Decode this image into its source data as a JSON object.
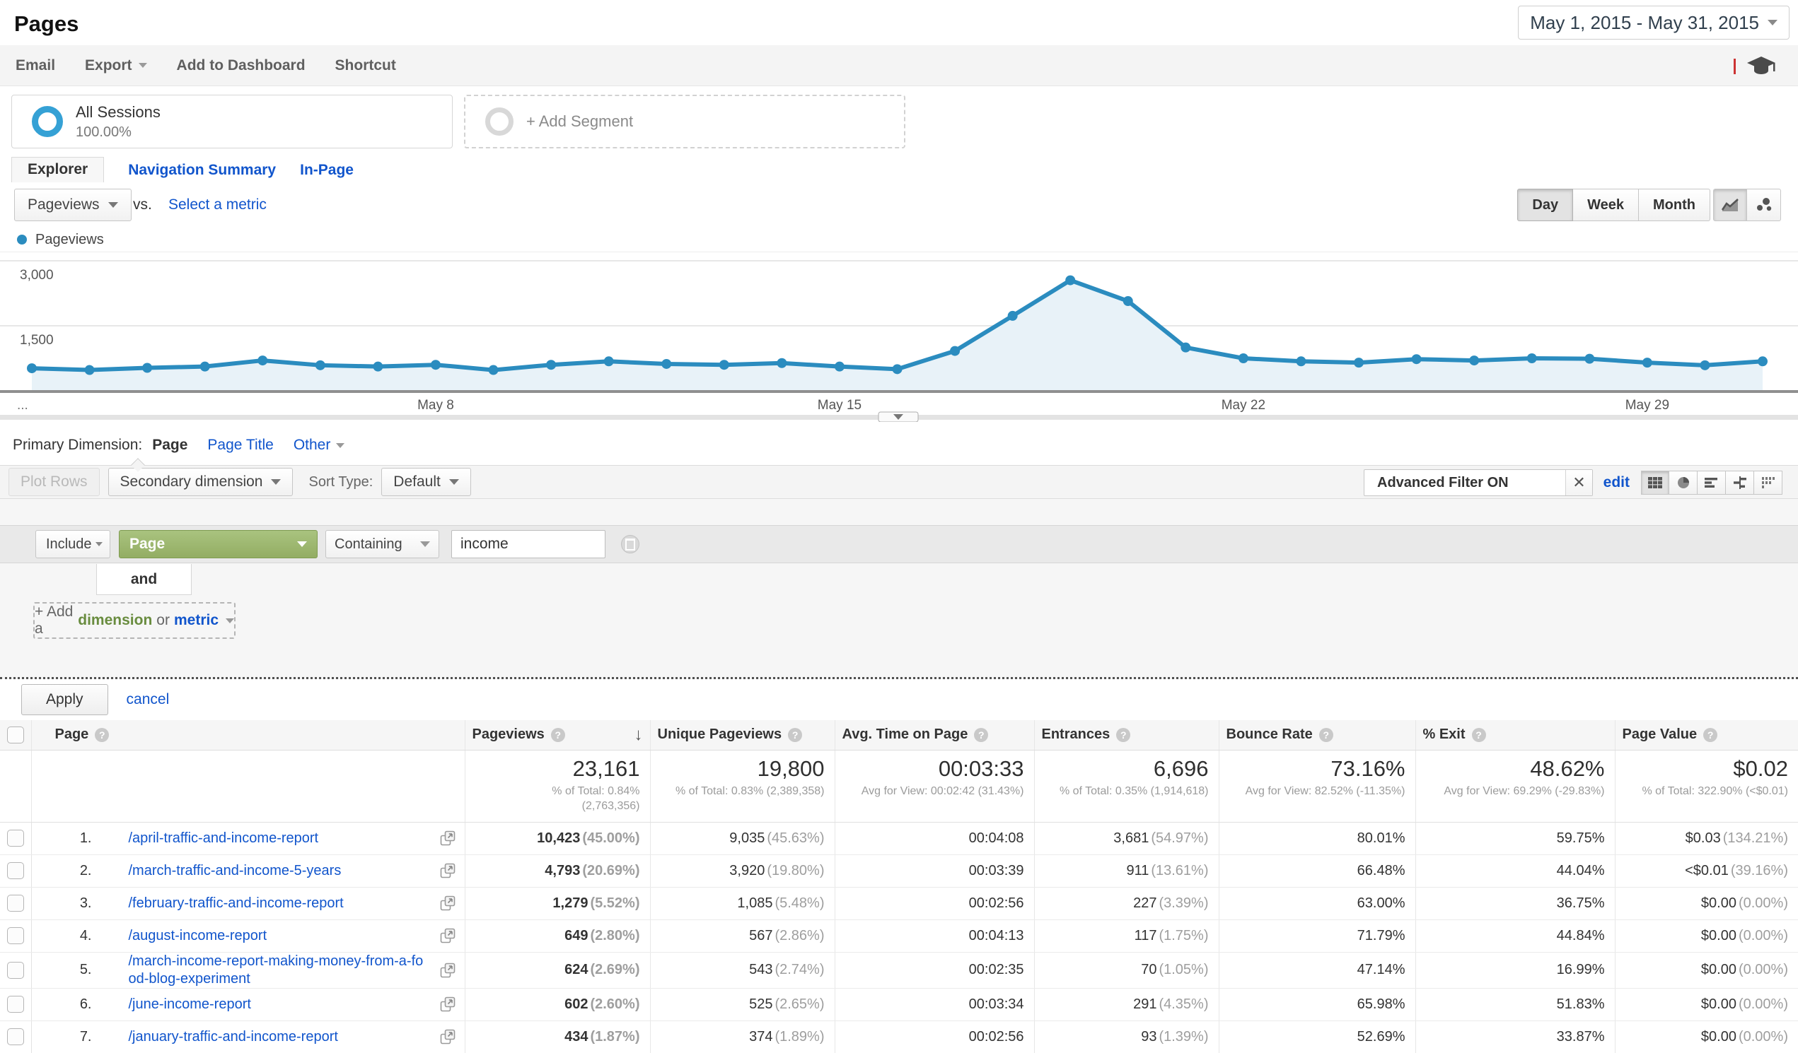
{
  "header": {
    "title": "Pages",
    "date_range": "May 1, 2015 - May 31, 2015"
  },
  "toolbar": {
    "items": [
      "Email",
      "Export",
      "Add to Dashboard",
      "Shortcut"
    ]
  },
  "segments": {
    "all_sessions_title": "All Sessions",
    "all_sessions_percent": "100.00%",
    "add_segment_label": "+ Add Segment"
  },
  "tabs": [
    {
      "label": "Explorer",
      "active": true
    },
    {
      "label": "Navigation Summary",
      "active": false
    },
    {
      "label": "In-Page",
      "active": false
    }
  ],
  "chart_controls": {
    "metric_selector": "Pageviews",
    "vs_label": "vs.",
    "select_metric_label": "Select a metric",
    "granularity": [
      "Day",
      "Week",
      "Month"
    ],
    "active_granularity": "Day"
  },
  "legend": {
    "series": "Pageviews"
  },
  "chart_data": {
    "type": "area",
    "title": "Pageviews by day, May 1 - May 31, 2015",
    "series": [
      {
        "name": "Pageviews",
        "values": [
          520,
          480,
          530,
          560,
          700,
          590,
          560,
          600,
          480,
          600,
          680,
          620,
          600,
          640,
          560,
          500,
          920,
          1730,
          2550,
          2070,
          1000,
          750,
          680,
          650,
          730,
          700,
          750,
          740,
          650,
          590,
          680
        ]
      }
    ],
    "x_tick_labels": [
      {
        "label": "May 8",
        "index": 7
      },
      {
        "label": "May 15",
        "index": 14
      },
      {
        "label": "May 22",
        "index": 21
      },
      {
        "label": "May 29",
        "index": 28
      }
    ],
    "x_overflow_label": "...",
    "y_ticks": [
      {
        "label": "1,500",
        "value": 1500
      },
      {
        "label": "3,000",
        "value": 3000
      }
    ],
    "ylim": [
      0,
      3000
    ],
    "grid": true,
    "legend_position": "top-left",
    "colors": {
      "line": "#2b8cbf",
      "fill": "#e8f2f8"
    }
  },
  "primary_dimension": {
    "label": "Primary Dimension:",
    "options": [
      {
        "label": "Page",
        "active": true
      },
      {
        "label": "Page Title",
        "active": false
      },
      {
        "label": "Other",
        "active": false
      }
    ]
  },
  "table_controls": {
    "plot_rows": "Plot Rows",
    "secondary_dimension": "Secondary dimension",
    "sort_type_label": "Sort Type:",
    "sort_type_value": "Default",
    "advanced_filter_label": "Advanced Filter ON",
    "edit_link": "edit"
  },
  "filter": {
    "operator": "Include",
    "dimension": "Page",
    "match_type": "Containing",
    "query": "income",
    "connector": "and",
    "add_prefix": "+ Add a",
    "add_dimension": "dimension",
    "add_conj": "or",
    "add_metric": "metric",
    "apply": "Apply",
    "cancel": "cancel"
  },
  "table": {
    "columns": [
      "Page",
      "Pageviews",
      "Unique Pageviews",
      "Avg. Time on Page",
      "Entrances",
      "Bounce Rate",
      "% Exit",
      "Page Value"
    ],
    "sorted_column": "Pageviews",
    "totals": {
      "pageviews": "23,161",
      "pageviews_sub1": "% of Total: 0.84%",
      "pageviews_sub2": "(2,763,356)",
      "unique_pageviews": "19,800",
      "unique_pageviews_sub": "% of Total: 0.83% (2,389,358)",
      "avg_time": "00:03:33",
      "avg_time_sub": "Avg for View: 00:02:42 (31.43%)",
      "entrances": "6,696",
      "entrances_sub": "% of Total: 0.35% (1,914,618)",
      "bounce_rate": "73.16%",
      "bounce_rate_sub": "Avg for View: 82.52% (-11.35%)",
      "pct_exit": "48.62%",
      "pct_exit_sub": "Avg for View: 69.29% (-29.83%)",
      "page_value": "$0.02",
      "page_value_sub": "% of Total: 322.90% (<$0.01)"
    },
    "rows": [
      {
        "index": "1.",
        "page": "/april-traffic-and-income-report",
        "pageviews": "10,423",
        "pageviews_pct": "(45.00%)",
        "unique_pageviews": "9,035",
        "unique_pageviews_pct": "(45.63%)",
        "avg_time": "00:04:08",
        "entrances": "3,681",
        "entrances_pct": "(54.97%)",
        "bounce_rate": "80.01%",
        "pct_exit": "59.75%",
        "page_value": "$0.03",
        "page_value_pct": "(134.21%)"
      },
      {
        "index": "2.",
        "page": "/march-traffic-and-income-5-years",
        "pageviews": "4,793",
        "pageviews_pct": "(20.69%)",
        "unique_pageviews": "3,920",
        "unique_pageviews_pct": "(19.80%)",
        "avg_time": "00:03:39",
        "entrances": "911",
        "entrances_pct": "(13.61%)",
        "bounce_rate": "66.48%",
        "pct_exit": "44.04%",
        "page_value": "<$0.01",
        "page_value_pct": "(39.16%)"
      },
      {
        "index": "3.",
        "page": "/february-traffic-and-income-report",
        "pageviews": "1,279",
        "pageviews_pct": "(5.52%)",
        "unique_pageviews": "1,085",
        "unique_pageviews_pct": "(5.48%)",
        "avg_time": "00:02:56",
        "entrances": "227",
        "entrances_pct": "(3.39%)",
        "bounce_rate": "63.00%",
        "pct_exit": "36.75%",
        "page_value": "$0.00",
        "page_value_pct": "(0.00%)"
      },
      {
        "index": "4.",
        "page": "/august-income-report",
        "pageviews": "649",
        "pageviews_pct": "(2.80%)",
        "unique_pageviews": "567",
        "unique_pageviews_pct": "(2.86%)",
        "avg_time": "00:04:13",
        "entrances": "117",
        "entrances_pct": "(1.75%)",
        "bounce_rate": "71.79%",
        "pct_exit": "44.84%",
        "page_value": "$0.00",
        "page_value_pct": "(0.00%)"
      },
      {
        "index": "5.",
        "page": "/march-income-report-making-money-from-a-food-blog-experiment",
        "pageviews": "624",
        "pageviews_pct": "(2.69%)",
        "unique_pageviews": "543",
        "unique_pageviews_pct": "(2.74%)",
        "avg_time": "00:02:35",
        "entrances": "70",
        "entrances_pct": "(1.05%)",
        "bounce_rate": "47.14%",
        "pct_exit": "16.99%",
        "page_value": "$0.00",
        "page_value_pct": "(0.00%)"
      },
      {
        "index": "6.",
        "page": "/june-income-report",
        "pageviews": "602",
        "pageviews_pct": "(2.60%)",
        "unique_pageviews": "525",
        "unique_pageviews_pct": "(2.65%)",
        "avg_time": "00:03:34",
        "entrances": "291",
        "entrances_pct": "(4.35%)",
        "bounce_rate": "65.98%",
        "pct_exit": "51.83%",
        "page_value": "$0.00",
        "page_value_pct": "(0.00%)"
      },
      {
        "index": "7.",
        "page": "/january-traffic-and-income-report",
        "pageviews": "434",
        "pageviews_pct": "(1.87%)",
        "unique_pageviews": "374",
        "unique_pageviews_pct": "(1.89%)",
        "avg_time": "00:02:56",
        "entrances": "93",
        "entrances_pct": "(1.39%)",
        "bounce_rate": "52.69%",
        "pct_exit": "33.87%",
        "page_value": "$0.00",
        "page_value_pct": "(0.00%)"
      }
    ]
  }
}
